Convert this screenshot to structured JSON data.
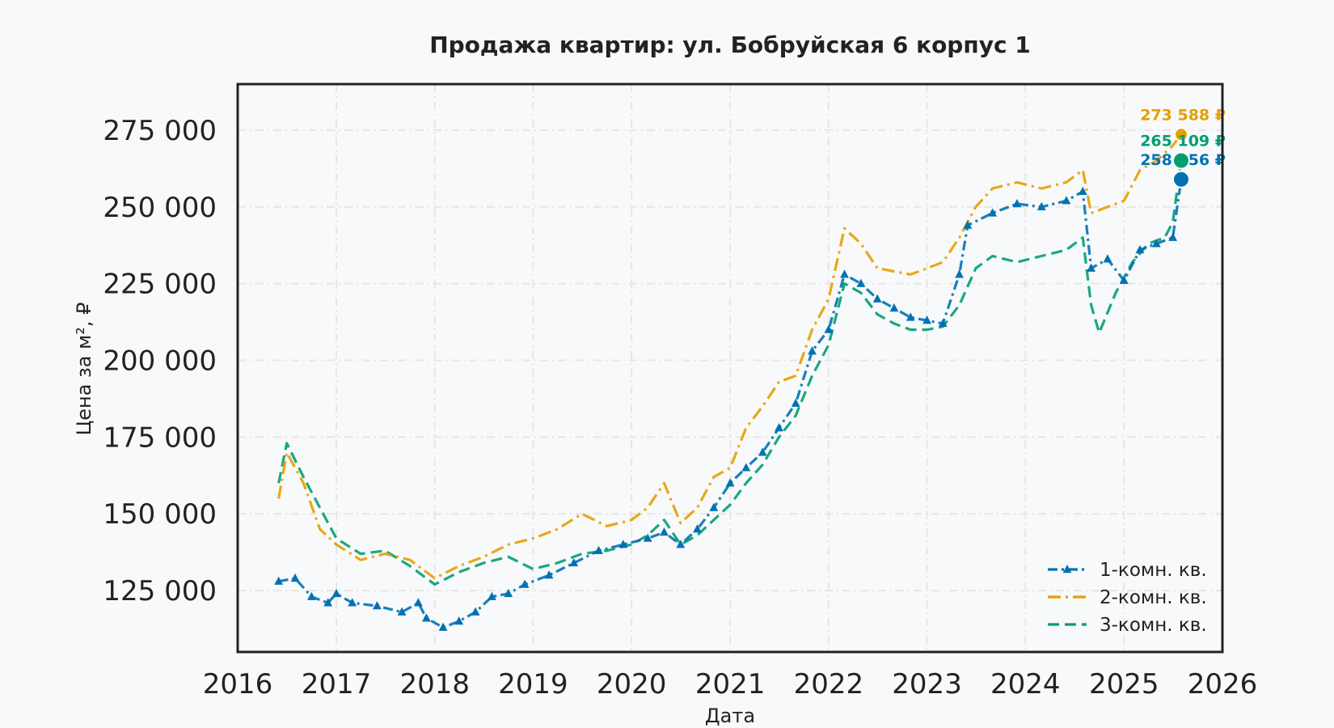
{
  "chart_data": {
    "type": "line",
    "title": "Продажа квартир: ул. Бобруйская 6 корпус 1",
    "xlabel": "Дата",
    "ylabel": "Цена за м², ₽",
    "xlim": [
      "2016-01-01",
      "2026-01-01"
    ],
    "ylim": [
      105000,
      290000
    ],
    "x_ticks": [
      "2016",
      "2017",
      "2018",
      "2019",
      "2020",
      "2021",
      "2022",
      "2023",
      "2024",
      "2025",
      "2026"
    ],
    "y_ticks": [
      125000,
      150000,
      175000,
      200000,
      225000,
      250000,
      275000
    ],
    "y_tick_labels": [
      "125 000",
      "150 000",
      "175 000",
      "200 000",
      "225 000",
      "250 000",
      "275 000"
    ],
    "grid": true,
    "legend_position": "lower-right",
    "series": [
      {
        "name": "1-комн. кв.",
        "color": "#0072b2",
        "style": "dash-dot-triangle",
        "end_label": "258 956 ₽",
        "end_value": 258956,
        "points": [
          [
            "2016-06-01",
            128000
          ],
          [
            "2016-08-01",
            129000
          ],
          [
            "2016-10-01",
            123000
          ],
          [
            "2016-12-01",
            121000
          ],
          [
            "2017-01-01",
            124000
          ],
          [
            "2017-03-01",
            121000
          ],
          [
            "2017-06-01",
            120000
          ],
          [
            "2017-09-01",
            118000
          ],
          [
            "2017-11-01",
            121000
          ],
          [
            "2017-12-01",
            116000
          ],
          [
            "2018-02-01",
            113000
          ],
          [
            "2018-04-01",
            115000
          ],
          [
            "2018-06-01",
            118000
          ],
          [
            "2018-08-01",
            123000
          ],
          [
            "2018-10-01",
            124000
          ],
          [
            "2018-12-01",
            127000
          ],
          [
            "2019-03-01",
            130000
          ],
          [
            "2019-06-01",
            134000
          ],
          [
            "2019-09-01",
            138000
          ],
          [
            "2019-12-01",
            140000
          ],
          [
            "2020-03-01",
            142000
          ],
          [
            "2020-05-01",
            144000
          ],
          [
            "2020-07-01",
            140000
          ],
          [
            "2020-09-01",
            145000
          ],
          [
            "2020-11-01",
            152000
          ],
          [
            "2021-01-01",
            160000
          ],
          [
            "2021-03-01",
            165000
          ],
          [
            "2021-05-01",
            170000
          ],
          [
            "2021-07-01",
            178000
          ],
          [
            "2021-09-01",
            186000
          ],
          [
            "2021-11-01",
            203000
          ],
          [
            "2022-01-01",
            210000
          ],
          [
            "2022-03-01",
            228000
          ],
          [
            "2022-05-01",
            225000
          ],
          [
            "2022-07-01",
            220000
          ],
          [
            "2022-09-01",
            217000
          ],
          [
            "2022-11-01",
            214000
          ],
          [
            "2023-01-01",
            213000
          ],
          [
            "2023-03-01",
            212000
          ],
          [
            "2023-05-01",
            228000
          ],
          [
            "2023-06-01",
            244000
          ],
          [
            "2023-09-01",
            248000
          ],
          [
            "2023-12-01",
            251000
          ],
          [
            "2024-03-01",
            250000
          ],
          [
            "2024-06-01",
            252000
          ],
          [
            "2024-08-01",
            255000
          ],
          [
            "2024-09-01",
            230000
          ],
          [
            "2024-11-01",
            233000
          ],
          [
            "2025-01-01",
            226000
          ],
          [
            "2025-03-01",
            236000
          ],
          [
            "2025-05-01",
            238000
          ],
          [
            "2025-07-01",
            240000
          ],
          [
            "2025-08-01",
            258956
          ]
        ]
      },
      {
        "name": "2-комн. кв.",
        "color": "#e69f00",
        "style": "dash-dot",
        "end_label": "273 588 ₽",
        "end_value": 273588,
        "points": [
          [
            "2016-06-01",
            155000
          ],
          [
            "2016-07-01",
            170000
          ],
          [
            "2016-09-01",
            160000
          ],
          [
            "2016-11-01",
            145000
          ],
          [
            "2017-01-01",
            140000
          ],
          [
            "2017-04-01",
            135000
          ],
          [
            "2017-07-01",
            137000
          ],
          [
            "2017-10-01",
            135000
          ],
          [
            "2018-01-01",
            129000
          ],
          [
            "2018-04-01",
            133000
          ],
          [
            "2018-07-01",
            136000
          ],
          [
            "2018-10-01",
            140000
          ],
          [
            "2019-01-01",
            142000
          ],
          [
            "2019-04-01",
            145000
          ],
          [
            "2019-07-01",
            150000
          ],
          [
            "2019-10-01",
            146000
          ],
          [
            "2020-01-01",
            148000
          ],
          [
            "2020-03-01",
            152000
          ],
          [
            "2020-05-01",
            160000
          ],
          [
            "2020-07-01",
            147000
          ],
          [
            "2020-09-01",
            152000
          ],
          [
            "2020-11-01",
            162000
          ],
          [
            "2021-01-01",
            165000
          ],
          [
            "2021-03-01",
            178000
          ],
          [
            "2021-05-01",
            185000
          ],
          [
            "2021-07-01",
            193000
          ],
          [
            "2021-09-01",
            195000
          ],
          [
            "2021-11-01",
            210000
          ],
          [
            "2022-01-01",
            220000
          ],
          [
            "2022-03-01",
            243000
          ],
          [
            "2022-05-01",
            238000
          ],
          [
            "2022-07-01",
            230000
          ],
          [
            "2022-09-01",
            229000
          ],
          [
            "2022-11-01",
            228000
          ],
          [
            "2023-01-01",
            230000
          ],
          [
            "2023-03-01",
            232000
          ],
          [
            "2023-05-01",
            240000
          ],
          [
            "2023-07-01",
            250000
          ],
          [
            "2023-09-01",
            256000
          ],
          [
            "2023-12-01",
            258000
          ],
          [
            "2024-03-01",
            256000
          ],
          [
            "2024-06-01",
            258000
          ],
          [
            "2024-08-01",
            262000
          ],
          [
            "2024-09-01",
            248000
          ],
          [
            "2024-11-01",
            250000
          ],
          [
            "2025-01-01",
            252000
          ],
          [
            "2025-03-01",
            262000
          ],
          [
            "2025-05-01",
            265000
          ],
          [
            "2025-07-01",
            270000
          ],
          [
            "2025-08-01",
            273588
          ]
        ]
      },
      {
        "name": "3-комн. кв.",
        "color": "#009e73",
        "style": "dashed",
        "end_label": "265 109 ₽",
        "end_value": 265109,
        "points": [
          [
            "2016-06-01",
            160000
          ],
          [
            "2016-07-01",
            173000
          ],
          [
            "2016-09-01",
            162000
          ],
          [
            "2016-11-01",
            152000
          ],
          [
            "2017-01-01",
            142000
          ],
          [
            "2017-04-01",
            137000
          ],
          [
            "2017-07-01",
            138000
          ],
          [
            "2017-10-01",
            133000
          ],
          [
            "2018-01-01",
            127000
          ],
          [
            "2018-04-01",
            131000
          ],
          [
            "2018-07-01",
            134000
          ],
          [
            "2018-10-01",
            136000
          ],
          [
            "2019-01-01",
            132000
          ],
          [
            "2019-04-01",
            134000
          ],
          [
            "2019-07-01",
            137000
          ],
          [
            "2019-10-01",
            138000
          ],
          [
            "2020-01-01",
            140000
          ],
          [
            "2020-03-01",
            143000
          ],
          [
            "2020-05-01",
            148000
          ],
          [
            "2020-07-01",
            140000
          ],
          [
            "2020-09-01",
            143000
          ],
          [
            "2020-11-01",
            148000
          ],
          [
            "2021-01-01",
            153000
          ],
          [
            "2021-03-01",
            160000
          ],
          [
            "2021-05-01",
            166000
          ],
          [
            "2021-07-01",
            175000
          ],
          [
            "2021-09-01",
            182000
          ],
          [
            "2021-11-01",
            195000
          ],
          [
            "2022-01-01",
            205000
          ],
          [
            "2022-03-01",
            225000
          ],
          [
            "2022-05-01",
            222000
          ],
          [
            "2022-07-01",
            215000
          ],
          [
            "2022-09-01",
            212000
          ],
          [
            "2022-11-01",
            210000
          ],
          [
            "2023-01-01",
            210000
          ],
          [
            "2023-03-01",
            211000
          ],
          [
            "2023-05-01",
            218000
          ],
          [
            "2023-07-01",
            230000
          ],
          [
            "2023-09-01",
            234000
          ],
          [
            "2023-12-01",
            232000
          ],
          [
            "2024-03-01",
            234000
          ],
          [
            "2024-06-01",
            236000
          ],
          [
            "2024-08-01",
            240000
          ],
          [
            "2024-09-01",
            218000
          ],
          [
            "2024-10-01",
            209000
          ],
          [
            "2024-12-01",
            222000
          ],
          [
            "2025-02-01",
            232000
          ],
          [
            "2025-04-01",
            238000
          ],
          [
            "2025-06-01",
            240000
          ],
          [
            "2025-07-01",
            245000
          ],
          [
            "2025-08-01",
            265109
          ]
        ]
      }
    ]
  }
}
